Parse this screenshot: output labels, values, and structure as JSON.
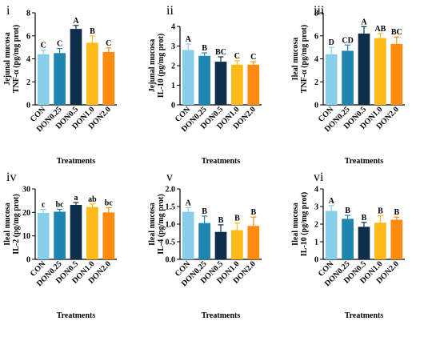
{
  "categories": [
    "CON",
    "DON0.25",
    "DON0.5",
    "DON1.0",
    "DON2.0"
  ],
  "colors": [
    "#87ceeb",
    "#1e84b0",
    "#0e2e4a",
    "#ffba1a",
    "#ff8a0e"
  ],
  "chart_data": [
    {
      "type": "bar",
      "panel": "i",
      "ylabel_top": "Jejunal mucosa",
      "ylabel_bottom": "TNF-α (pg/mg prot)",
      "xlabel": "Treatments",
      "ylim": [
        0,
        8
      ],
      "yticks": [
        "0",
        "2",
        "4",
        "6",
        "8"
      ],
      "values": [
        4.4,
        4.5,
        6.6,
        5.4,
        4.6
      ],
      "errors": [
        0.35,
        0.4,
        0.3,
        0.6,
        0.35
      ],
      "letters": [
        "C",
        "C",
        "A",
        "B",
        "C"
      ]
    },
    {
      "type": "bar",
      "panel": "ii",
      "ylabel_top": "Jejunal mucosa",
      "ylabel_bottom": "IL-10 (pg/mg prot)",
      "xlabel": "Treatments",
      "ylim": [
        0,
        4
      ],
      "yticks": [
        "0",
        "1",
        "2",
        "3",
        "4"
      ],
      "values": [
        2.8,
        2.5,
        2.2,
        2.05,
        2.05
      ],
      "errors": [
        0.3,
        0.15,
        0.25,
        0.2,
        0.15
      ],
      "letters": [
        "A",
        "B",
        "BC",
        "C",
        "C"
      ]
    },
    {
      "type": "bar",
      "panel": "iii",
      "ylabel_top": "Ileal mucosa",
      "ylabel_bottom": "TNF-α (pg/mg prot)",
      "xlabel": "Treatments",
      "ylim": [
        0,
        8
      ],
      "yticks": [
        "0",
        "2",
        "4",
        "6",
        "8"
      ],
      "values": [
        4.4,
        4.7,
        6.2,
        5.8,
        5.3
      ],
      "errors": [
        0.6,
        0.5,
        0.6,
        0.4,
        0.6
      ],
      "letters": [
        "D",
        "CD",
        "A",
        "AB",
        "BC"
      ]
    },
    {
      "type": "bar",
      "panel": "iv",
      "ylabel_top": "Ileal mucosa",
      "ylabel_bottom": "IL-2 (pg/mg prot)",
      "xlabel": "Treatments",
      "ylim": [
        0,
        30
      ],
      "yticks": [
        "0",
        "10",
        "20",
        "30"
      ],
      "values": [
        19.8,
        20.3,
        23.2,
        22.3,
        20.0
      ],
      "errors": [
        1.5,
        1.0,
        1.0,
        1.3,
        2.0
      ],
      "letters": [
        "c",
        "bc",
        "a",
        "ab",
        "bc"
      ]
    },
    {
      "type": "bar",
      "panel": "v",
      "ylabel_top": "Ileal mucosa",
      "ylabel_bottom": "IL-4 (pg/mg prot)",
      "xlabel": "Treatments",
      "ylim": [
        0,
        2.0
      ],
      "yticks": [
        "0.0",
        "0.5",
        "1.0",
        "1.5",
        "2.0"
      ],
      "values": [
        1.35,
        1.03,
        0.78,
        0.83,
        0.95
      ],
      "errors": [
        0.12,
        0.2,
        0.2,
        0.2,
        0.25
      ],
      "letters": [
        "A",
        "B",
        "B",
        "B",
        "B"
      ]
    },
    {
      "type": "bar",
      "panel": "vi",
      "ylabel_top": "Ileal mucosa",
      "ylabel_bottom": "IL-10 (pg/mg prot)",
      "xlabel": "Treatments",
      "ylim": [
        0,
        4
      ],
      "yticks": [
        "0",
        "1",
        "2",
        "3",
        "4"
      ],
      "values": [
        2.75,
        2.3,
        1.85,
        2.08,
        2.25
      ],
      "errors": [
        0.3,
        0.2,
        0.25,
        0.4,
        0.15
      ],
      "letters": [
        "A",
        "B",
        "B",
        "B",
        "B"
      ]
    }
  ]
}
